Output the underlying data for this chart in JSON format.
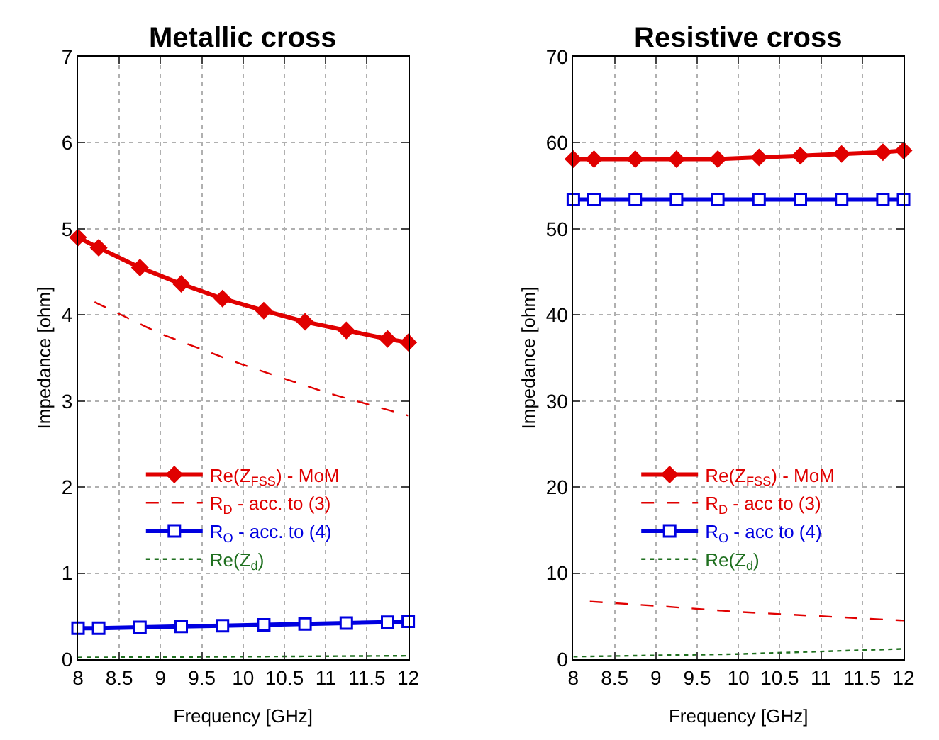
{
  "chart_data": [
    {
      "type": "line",
      "title": "Metallic cross",
      "xlabel": "Frequency [GHz]",
      "ylabel": "Impedance [ohm]",
      "xlim": [
        8,
        12
      ],
      "xticks": [
        8,
        8.5,
        9,
        9.5,
        10,
        10.5,
        11,
        11.5,
        12
      ],
      "ylim": [
        0,
        7
      ],
      "yticks": [
        0,
        1,
        2,
        3,
        4,
        5,
        6,
        7
      ],
      "grid": true,
      "legend": "bottom",
      "series": [
        {
          "name": "Re(Z$_{FSS}$) - MoM",
          "color": "#e00000",
          "marker": "diamond",
          "line_style": "solid",
          "x": [
            8,
            8.25,
            8.75,
            9.25,
            9.75,
            10.25,
            10.75,
            11.25,
            11.75,
            12
          ],
          "values": [
            4.9,
            4.78,
            4.55,
            4.36,
            4.19,
            4.05,
            3.92,
            3.82,
            3.72,
            3.68
          ]
        },
        {
          "name": "R$_{D}$ - acc. to (3)",
          "color": "#e00000",
          "marker": "none",
          "line_style": "dashed",
          "x": [
            8.2,
            9,
            10,
            11,
            12
          ],
          "values": [
            4.15,
            3.78,
            3.42,
            3.1,
            2.83
          ]
        },
        {
          "name": "R$_{O}$ - acc. to (4)",
          "color": "#0000e0",
          "marker": "square",
          "line_style": "solid",
          "x": [
            8,
            8.25,
            8.75,
            9.25,
            9.75,
            10.25,
            10.75,
            11.25,
            11.75,
            12
          ],
          "values": [
            0.36,
            0.36,
            0.37,
            0.38,
            0.39,
            0.4,
            0.41,
            0.42,
            0.43,
            0.44
          ]
        },
        {
          "name": "Re(Z$_{d}$)",
          "color": "#207020",
          "marker": "none",
          "line_style": "dotted",
          "x": [
            8,
            10,
            12
          ],
          "values": [
            0.02,
            0.03,
            0.04
          ]
        }
      ]
    },
    {
      "type": "line",
      "title": "Resistive cross",
      "xlabel": "Frequency [GHz]",
      "ylabel": "Impedance [ohm]",
      "xlim": [
        8,
        12
      ],
      "xticks": [
        8,
        8.5,
        9,
        9.5,
        10,
        10.5,
        11,
        11.5,
        12
      ],
      "ylim": [
        0,
        70
      ],
      "yticks": [
        0,
        10,
        20,
        30,
        40,
        50,
        60,
        70
      ],
      "grid": true,
      "legend": "bottom",
      "series": [
        {
          "name": "Re(Z$_{FSS}$) - MoM",
          "color": "#e00000",
          "marker": "diamond",
          "line_style": "solid",
          "x": [
            8,
            8.25,
            8.75,
            9.25,
            9.75,
            10.25,
            10.75,
            11.25,
            11.75,
            12
          ],
          "values": [
            58.1,
            58.1,
            58.1,
            58.1,
            58.1,
            58.3,
            58.5,
            58.7,
            58.9,
            59.1
          ]
        },
        {
          "name": "R$_{D}$ - acc to (3)",
          "color": "#e00000",
          "marker": "none",
          "line_style": "dashed",
          "x": [
            8.2,
            9,
            10,
            11,
            12
          ],
          "values": [
            6.7,
            6.2,
            5.5,
            5.0,
            4.5
          ]
        },
        {
          "name": "R$_{O}$ - acc to (4)",
          "color": "#0000e0",
          "marker": "square",
          "line_style": "solid",
          "x": [
            8,
            8.25,
            8.75,
            9.25,
            9.75,
            10.25,
            10.75,
            11.25,
            11.75,
            12
          ],
          "values": [
            53.4,
            53.4,
            53.4,
            53.4,
            53.4,
            53.4,
            53.4,
            53.4,
            53.4,
            53.4
          ]
        },
        {
          "name": "Re(Z$_{d}$)",
          "color": "#207020",
          "marker": "none",
          "line_style": "dotted",
          "x": [
            8,
            10,
            12
          ],
          "values": [
            0.3,
            0.6,
            1.2
          ]
        }
      ]
    }
  ]
}
